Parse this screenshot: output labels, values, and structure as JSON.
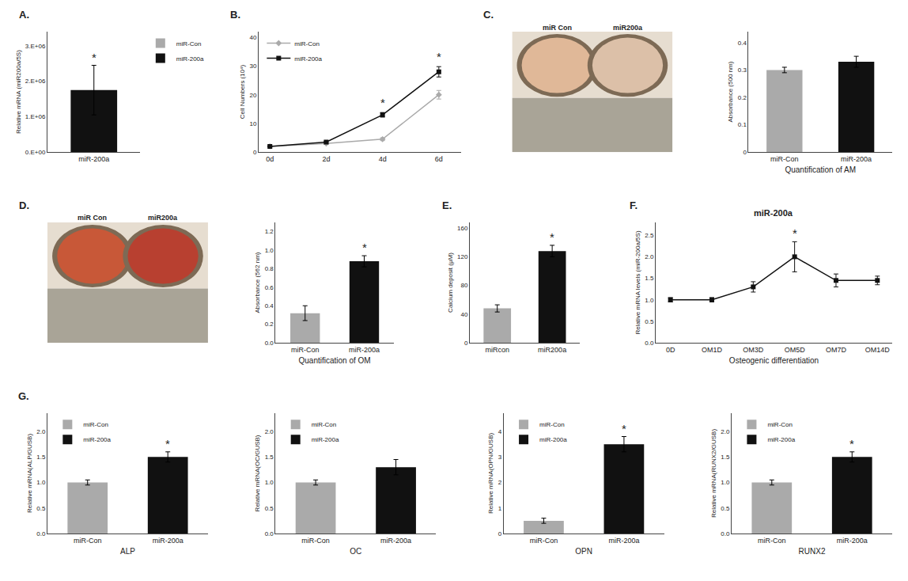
{
  "chart_data": [
    {
      "type": "bar",
      "categories": [
        "miR-200a"
      ],
      "series": [
        {
          "name": "miR-Con",
          "color": "#aaaaaa",
          "values": [
            null
          ],
          "errors": [
            null
          ]
        },
        {
          "name": "miR-200a",
          "color": "#111111",
          "values": [
            1750000
          ],
          "errors": [
            700000
          ]
        }
      ],
      "ylabel": "Relative mRNA (miR200a/5S)",
      "ylim": [
        0,
        3400000
      ],
      "yticks": [
        {
          "value": 0,
          "label": "0.E+00"
        },
        {
          "value": 1000000,
          "label": "1.E+06"
        },
        {
          "value": 2000000,
          "label": "2.E+06"
        },
        {
          "value": 3000000,
          "label": "3.E+06"
        }
      ],
      "legend": "upper left",
      "grid": false,
      "annotations": [
        {
          "text": "A."
        },
        {
          "x": "miR-200a",
          "text": "*"
        }
      ]
    },
    {
      "type": "line",
      "x": [
        0,
        2,
        4,
        6
      ],
      "xlim": [
        -0.4,
        6.8
      ],
      "xticks": [
        {
          "value": 0,
          "label": "0d"
        },
        {
          "value": 2,
          "label": "2d"
        },
        {
          "value": 4,
          "label": "4d"
        },
        {
          "value": 6,
          "label": "6d"
        }
      ],
      "series": [
        {
          "name": "miR-Con",
          "color": "#aaaaaa",
          "marker": "diamond",
          "values": [
            2,
            3,
            4.5,
            20
          ],
          "errors": [
            0.2,
            0.3,
            0.5,
            1.5
          ]
        },
        {
          "name": "miR-200a",
          "color": "#111111",
          "marker": "square",
          "values": [
            2,
            3.5,
            13,
            28
          ],
          "errors": [
            0.2,
            0.3,
            0.8,
            1.8
          ]
        }
      ],
      "ylabel": "Cell Numbers (10⁴)",
      "ylim": [
        0,
        42
      ],
      "yticks": [
        0,
        10,
        20,
        30,
        40
      ],
      "legend": "upper left",
      "grid": false,
      "annotations": [
        {
          "text": "B."
        },
        {
          "x": 4,
          "y": 14.5,
          "text": "*"
        },
        {
          "x": 6,
          "y": 30.5,
          "text": "*"
        }
      ]
    },
    {
      "type": "image",
      "categories": [
        "miR Con",
        "miR200a"
      ],
      "colors": [
        "#e0b898",
        "#dcc0a8"
      ],
      "annotations": [
        {
          "text": "C."
        }
      ]
    },
    {
      "type": "bar",
      "categories": [
        "miR-Con",
        "miR-200a"
      ],
      "values": [
        0.3,
        0.33
      ],
      "errors": [
        0.01,
        0.02
      ],
      "colors": [
        "#aaaaaa",
        "#111111"
      ],
      "ylabel": "Absorbance (500 nm)",
      "xlabel": "Quantification of AM",
      "ylim": [
        0,
        0.44
      ],
      "yticks": [
        0,
        0.1,
        0.2,
        0.3,
        0.4
      ],
      "grid": false
    },
    {
      "type": "image",
      "categories": [
        "miR Con",
        "miR200a"
      ],
      "colors": [
        "#c85838",
        "#b84030"
      ],
      "annotations": [
        {
          "text": "D."
        }
      ]
    },
    {
      "type": "bar",
      "categories": [
        "miR-Con",
        "miR-200a"
      ],
      "values": [
        0.32,
        0.88
      ],
      "errors": [
        0.08,
        0.06
      ],
      "colors": [
        "#aaaaaa",
        "#111111"
      ],
      "ylabel": "Absorbance (562 nm)",
      "xlabel": "Quantification of OM",
      "ylim": [
        0,
        1.3
      ],
      "yticks": [
        {
          "value": 0,
          "label": "0.0"
        },
        0.2,
        0.4,
        0.6,
        0.8,
        {
          "value": 1.0,
          "label": "1.0"
        },
        1.2
      ],
      "grid": false,
      "annotations": [
        {
          "x": "miR-200a",
          "text": "*"
        }
      ]
    },
    {
      "type": "bar",
      "categories": [
        "miRcon",
        "miR200a"
      ],
      "values": [
        48,
        128
      ],
      "errors": [
        5,
        8
      ],
      "colors": [
        "#aaaaaa",
        "#111111"
      ],
      "ylabel": "Calcium deposit (μM)",
      "ylim": [
        0,
        168
      ],
      "yticks": [
        0,
        40,
        80,
        120,
        160
      ],
      "grid": false,
      "annotations": [
        {
          "text": "E."
        },
        {
          "x": "miR200a",
          "text": "*"
        }
      ]
    },
    {
      "type": "line",
      "title": "miR-200a",
      "categories": [
        "0D",
        "OM1D",
        "OM3D",
        "OM5D",
        "OM7D",
        "OM14D"
      ],
      "values": [
        1.0,
        1.0,
        1.3,
        2.0,
        1.45,
        1.45
      ],
      "errors": [
        0.05,
        0.05,
        0.12,
        0.35,
        0.15,
        0.1
      ],
      "color": "#111111",
      "marker": "square",
      "ylabel": "Relative mRNA levels (miR-200a/5S)",
      "xlabel": "Osteogenic differentiation",
      "ylim": [
        0,
        2.8
      ],
      "yticks": [
        {
          "value": 0,
          "label": "0.0"
        },
        0.5,
        {
          "value": 1.0,
          "label": "1.0"
        },
        1.5,
        {
          "value": 2.0,
          "label": "2.0"
        },
        2.5
      ],
      "grid": false,
      "annotations": [
        {
          "text": "F."
        },
        {
          "x": "OM5D",
          "text": "*"
        }
      ]
    },
    {
      "type": "bar",
      "categories": [
        "miR-Con",
        "miR-200a"
      ],
      "series": [
        {
          "name": "miR-Con",
          "color": "#aaaaaa",
          "values": [
            1.0,
            null
          ],
          "errors": [
            0.05,
            null
          ]
        },
        {
          "name": "miR-200a",
          "color": "#111111",
          "values": [
            null,
            1.5
          ],
          "errors": [
            null,
            0.1
          ]
        }
      ],
      "ylabel": "Relative mRNA(ALP/GUSB)",
      "xlabel": "ALP",
      "ylim": [
        0,
        2.36
      ],
      "yticks": [
        {
          "value": 0,
          "label": "0.0"
        },
        0.5,
        {
          "value": 1.0,
          "label": "1.0"
        },
        1.5,
        {
          "value": 2.0,
          "label": "2.0"
        }
      ],
      "legend": "upper left",
      "grid": false,
      "annotations": [
        {
          "text": "G."
        },
        {
          "x": "miR-200a",
          "text": "*"
        }
      ]
    },
    {
      "type": "bar",
      "categories": [
        "miR-Con",
        "miR-200a"
      ],
      "series": [
        {
          "name": "miR-Con",
          "color": "#aaaaaa",
          "values": [
            1.0,
            null
          ],
          "errors": [
            0.05,
            null
          ]
        },
        {
          "name": "miR-200a",
          "color": "#111111",
          "values": [
            null,
            1.3
          ],
          "errors": [
            null,
            0.15
          ]
        }
      ],
      "ylabel": "Relative mRNA(OC/GUSB)",
      "xlabel": "OC",
      "ylim": [
        0,
        2.36
      ],
      "yticks": [
        {
          "value": 0,
          "label": "0.0"
        },
        0.5,
        {
          "value": 1.0,
          "label": "1.0"
        },
        1.5,
        {
          "value": 2.0,
          "label": "2.0"
        }
      ],
      "legend": "upper left",
      "grid": false
    },
    {
      "type": "bar",
      "categories": [
        "miR-Con",
        "miR-200a"
      ],
      "series": [
        {
          "name": "miR-Con",
          "color": "#aaaaaa",
          "values": [
            0.5,
            null
          ],
          "errors": [
            0.1,
            null
          ]
        },
        {
          "name": "miR-200a",
          "color": "#111111",
          "values": [
            null,
            3.5
          ],
          "errors": [
            null,
            0.3
          ]
        }
      ],
      "ylabel": "Relative mRNA(OPN/GUSB)",
      "xlabel": "OPN",
      "ylim": [
        0,
        4.72
      ],
      "yticks": [
        0,
        1,
        2,
        3,
        4
      ],
      "legend": "upper left",
      "grid": false,
      "annotations": [
        {
          "x": "miR-200a",
          "text": "*"
        }
      ]
    },
    {
      "type": "bar",
      "categories": [
        "miR-Con",
        "miR-200a"
      ],
      "series": [
        {
          "name": "miR-Con",
          "color": "#aaaaaa",
          "values": [
            1.0,
            null
          ],
          "errors": [
            0.05,
            null
          ]
        },
        {
          "name": "miR-200a",
          "color": "#111111",
          "values": [
            null,
            1.5
          ],
          "errors": [
            null,
            0.1
          ]
        }
      ],
      "ylabel": "Relative mRNA(RUNX2/GUSB)",
      "xlabel": "RUNX2",
      "ylim": [
        0,
        2.36
      ],
      "yticks": [
        {
          "value": 0,
          "label": "0.0"
        },
        0.5,
        {
          "value": 1.0,
          "label": "1.0"
        },
        1.5,
        {
          "value": 2.0,
          "label": "2.0"
        }
      ],
      "legend": "upper left",
      "grid": false,
      "annotations": [
        {
          "x": "miR-200a",
          "text": "*"
        }
      ]
    }
  ]
}
